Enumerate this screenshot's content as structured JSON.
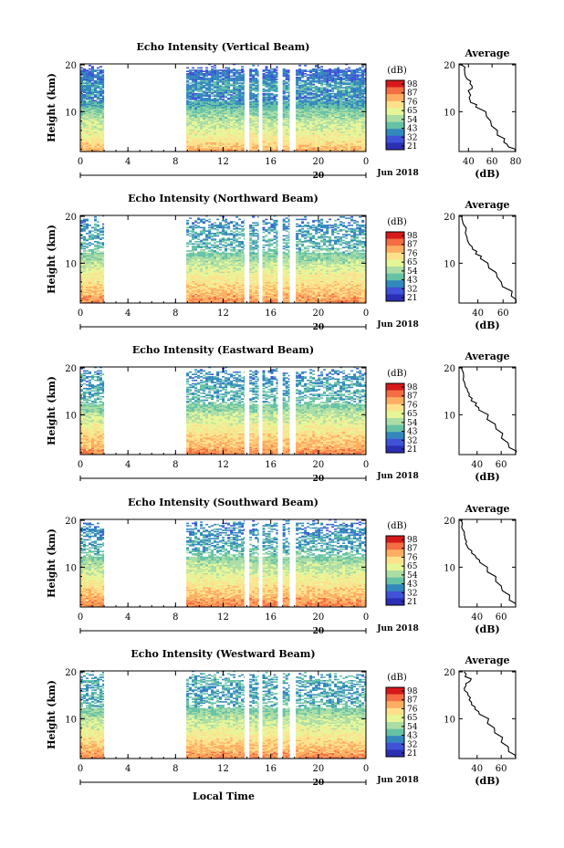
{
  "xlabel": "Local Time",
  "date_label": "Jun 2018",
  "date_day": "20",
  "colorbar": {
    "unit": "(dB)",
    "levels": [
      "98",
      "87",
      "76",
      "65",
      "54",
      "43",
      "32",
      "21"
    ],
    "colors": [
      "#d7191c",
      "#f46d43",
      "#fdae61",
      "#fee08b",
      "#e6f598",
      "#abdda4",
      "#66c2a5",
      "#3288bd",
      "#3f52d9",
      "#2b2fb4"
    ]
  },
  "chart_data": [
    {
      "type": "heatmap",
      "title": "Echo Intensity (Vertical Beam)",
      "ylabel": "Height (km)",
      "xlim": [
        0,
        24
      ],
      "ylim": [
        1.5,
        20.2
      ],
      "xticks": [
        "0",
        "4",
        "8",
        "12",
        "16",
        "20",
        "0"
      ],
      "yticks": [
        "20",
        "10"
      ],
      "colorbar_levels": [
        "98",
        "87",
        "76",
        "65",
        "54",
        "43",
        "32",
        "21"
      ],
      "data_intervals_h": [
        [
          0,
          2
        ],
        [
          8.9,
          13.8
        ],
        [
          14.2,
          15.0
        ],
        [
          15.3,
          16.6
        ],
        [
          17.0,
          17.6
        ],
        [
          18.1,
          24
        ]
      ],
      "profile": {
        "title": "Average",
        "xlabel": "(dB)",
        "xlim": [
          32,
          80
        ],
        "xticks": [
          "40",
          "60",
          "80"
        ],
        "height_km": [
          1.5,
          2.5,
          3.5,
          5,
          7,
          9,
          11,
          12,
          13,
          14,
          15,
          16,
          17,
          18,
          19,
          20
        ],
        "avg_db": [
          80,
          74,
          70,
          65,
          60,
          55,
          47,
          42,
          40,
          41,
          43,
          42,
          38,
          37,
          36,
          34
        ]
      }
    },
    {
      "type": "heatmap",
      "title": "Echo Intensity (Northward Beam)",
      "ylabel": "Height (km)",
      "xlim": [
        0,
        24
      ],
      "ylim": [
        1.5,
        20.2
      ],
      "xticks": [
        "0",
        "4",
        "8",
        "12",
        "16",
        "20",
        "0"
      ],
      "yticks": [
        "20",
        "10"
      ],
      "colorbar_levels": [
        "98",
        "87",
        "76",
        "65",
        "54",
        "43",
        "32",
        "21"
      ],
      "data_intervals_h": [
        [
          0,
          2
        ],
        [
          8.9,
          13.8
        ],
        [
          14.2,
          15.0
        ],
        [
          15.3,
          16.6
        ],
        [
          17.0,
          17.6
        ],
        [
          18.1,
          24
        ]
      ],
      "profile": {
        "title": "Average",
        "xlabel": "(dB)",
        "xlim": [
          25,
          70
        ],
        "xticks": [
          "40",
          "60"
        ],
        "height_km": [
          1.5,
          3,
          5,
          7,
          9,
          11,
          12,
          13,
          14,
          15,
          16,
          17,
          18,
          19,
          20
        ],
        "avg_db": [
          70,
          66,
          60,
          55,
          49,
          42,
          38,
          36,
          33,
          32,
          31,
          30,
          29,
          28,
          27
        ]
      }
    },
    {
      "type": "heatmap",
      "title": "Echo Intensity (Eastward Beam)",
      "ylabel": "Height (km)",
      "xlim": [
        0,
        24
      ],
      "ylim": [
        1.5,
        20.2
      ],
      "xticks": [
        "0",
        "4",
        "8",
        "12",
        "16",
        "20",
        "0"
      ],
      "yticks": [
        "20",
        "10"
      ],
      "colorbar_levels": [
        "98",
        "87",
        "76",
        "65",
        "54",
        "43",
        "32",
        "21"
      ],
      "data_intervals_h": [
        [
          0,
          2
        ],
        [
          8.9,
          13.8
        ],
        [
          14.2,
          15.0
        ],
        [
          15.3,
          16.6
        ],
        [
          17.0,
          17.6
        ],
        [
          18.1,
          24
        ]
      ],
      "profile": {
        "title": "Average",
        "xlabel": "(dB)",
        "xlim": [
          25,
          72
        ],
        "xticks": [
          "40",
          "60"
        ],
        "height_km": [
          1.5,
          3,
          5,
          7,
          9,
          11,
          12,
          13,
          14,
          15,
          16,
          17,
          18,
          19,
          20
        ],
        "avg_db": [
          72,
          66,
          61,
          55,
          49,
          42,
          38,
          35,
          33,
          32,
          31,
          30,
          29,
          28,
          27
        ]
      }
    },
    {
      "type": "heatmap",
      "title": "Echo Intensity (Southward Beam)",
      "ylabel": "Height (km)",
      "xlim": [
        0,
        24
      ],
      "ylim": [
        1.5,
        20.2
      ],
      "xticks": [
        "0",
        "4",
        "8",
        "12",
        "16",
        "20",
        "0"
      ],
      "yticks": [
        "20",
        "10"
      ],
      "colorbar_levels": [
        "98",
        "87",
        "76",
        "65",
        "54",
        "43",
        "32",
        "21"
      ],
      "data_intervals_h": [
        [
          0,
          2
        ],
        [
          8.9,
          13.8
        ],
        [
          14.2,
          15.0
        ],
        [
          15.3,
          16.6
        ],
        [
          17.0,
          17.6
        ],
        [
          18.1,
          24
        ]
      ],
      "profile": {
        "title": "Average",
        "xlabel": "(dB)",
        "xlim": [
          25,
          72
        ],
        "xticks": [
          "40",
          "60"
        ],
        "height_km": [
          1.5,
          3,
          5,
          7,
          9,
          11,
          12,
          13,
          14,
          15,
          16,
          17,
          18,
          19,
          20
        ],
        "avg_db": [
          72,
          67,
          61,
          55,
          49,
          43,
          39,
          36,
          33,
          31,
          30,
          29,
          28,
          27,
          26
        ]
      }
    },
    {
      "type": "heatmap",
      "title": "Echo Intensity (Westward Beam)",
      "ylabel": "Height (km)",
      "xlim": [
        0,
        24
      ],
      "ylim": [
        1.5,
        20.2
      ],
      "xticks": [
        "0",
        "4",
        "8",
        "12",
        "16",
        "20",
        "0"
      ],
      "yticks": [
        "20",
        "10"
      ],
      "colorbar_levels": [
        "98",
        "87",
        "76",
        "65",
        "54",
        "43",
        "32",
        "21"
      ],
      "data_intervals_h": [
        [
          0,
          2
        ],
        [
          8.9,
          13.8
        ],
        [
          14.2,
          15.0
        ],
        [
          15.3,
          16.6
        ],
        [
          17.0,
          17.6
        ],
        [
          18.1,
          24
        ]
      ],
      "profile": {
        "title": "Average",
        "xlabel": "(dB)",
        "xlim": [
          25,
          72
        ],
        "xticks": [
          "40",
          "60"
        ],
        "height_km": [
          1.5,
          3,
          5,
          7,
          9,
          11,
          12,
          13,
          14,
          15,
          16,
          17,
          18,
          19,
          20
        ],
        "avg_db": [
          72,
          66,
          60,
          54,
          48,
          42,
          38,
          35,
          33,
          32,
          30,
          31,
          34,
          30,
          29
        ]
      }
    }
  ]
}
